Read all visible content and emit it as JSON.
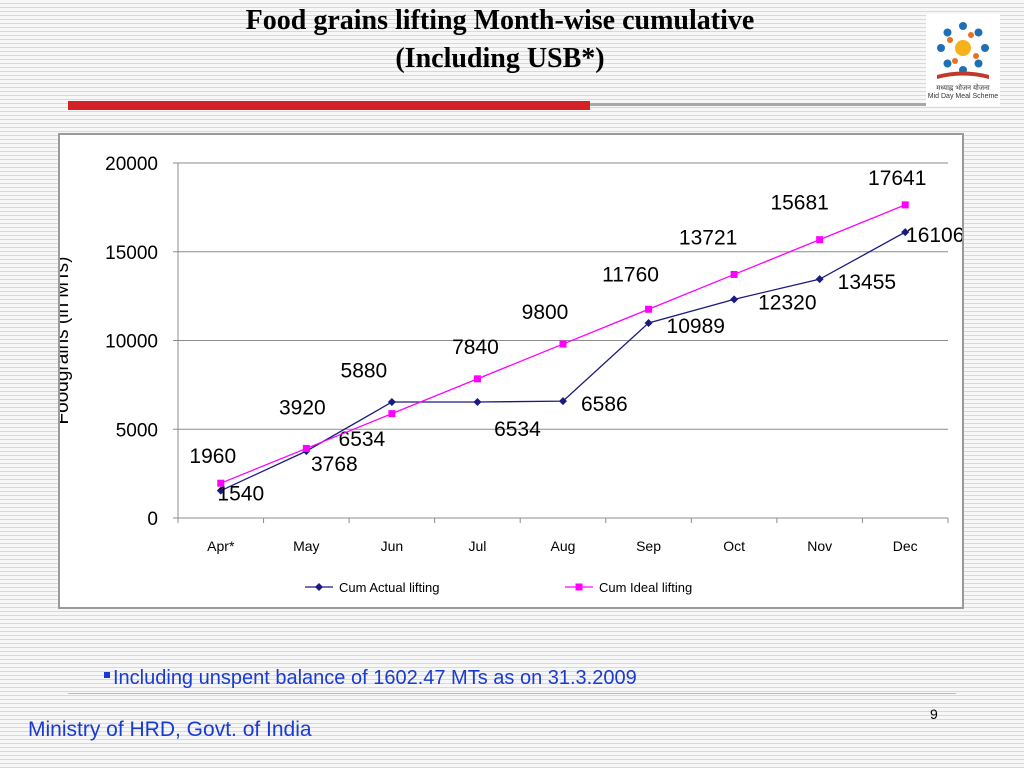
{
  "slide": {
    "title_line1": "Food grains lifting Month-wise cumulative",
    "title_line2": "(Including USB*)",
    "note": "Including unspent balance of 1602.47 MTs as on 31.3.2009",
    "page_number": "9",
    "footer": "Ministry of HRD, Govt. of India",
    "logo_caption_line1": "मध्याह्न भोजन योजना",
    "logo_caption_line2": "Mid Day Meal Scheme",
    "colors": {
      "title_rule": "#d42027",
      "footer_text": "#1a3bd1"
    }
  },
  "chart_data": {
    "type": "line",
    "ylabel": "Foodgrains (in MTs)",
    "xlabel": "",
    "categories": [
      "Apr*",
      "May",
      "Jun",
      "Jul",
      "Aug",
      "Sep",
      "Oct",
      "Nov",
      "Dec"
    ],
    "y_ticks": [
      "0",
      "5000",
      "10000",
      "15000",
      "20000"
    ],
    "ylim": [
      0,
      20000
    ],
    "grid": true,
    "legend_position": "bottom",
    "series": [
      {
        "name": "Cum Actual lifting",
        "color": "#1a1a80",
        "marker": "diamond",
        "values": [
          1540,
          3768,
          6534,
          6534,
          6586,
          10989,
          12320,
          13455,
          16106
        ],
        "labels": [
          "1540",
          "3768",
          "6534",
          "6534",
          "6586",
          "10989",
          "12320",
          "13455",
          "16106"
        ]
      },
      {
        "name": "Cum Ideal  lifting",
        "color": "#ff00ff",
        "marker": "square",
        "values": [
          1960,
          3920,
          5880,
          7840,
          9800,
          11760,
          13721,
          15681,
          17641
        ],
        "labels": [
          "1960",
          "3920",
          "5880",
          "7840",
          "9800",
          "11760",
          "13721",
          "15681",
          "17641"
        ]
      }
    ]
  }
}
